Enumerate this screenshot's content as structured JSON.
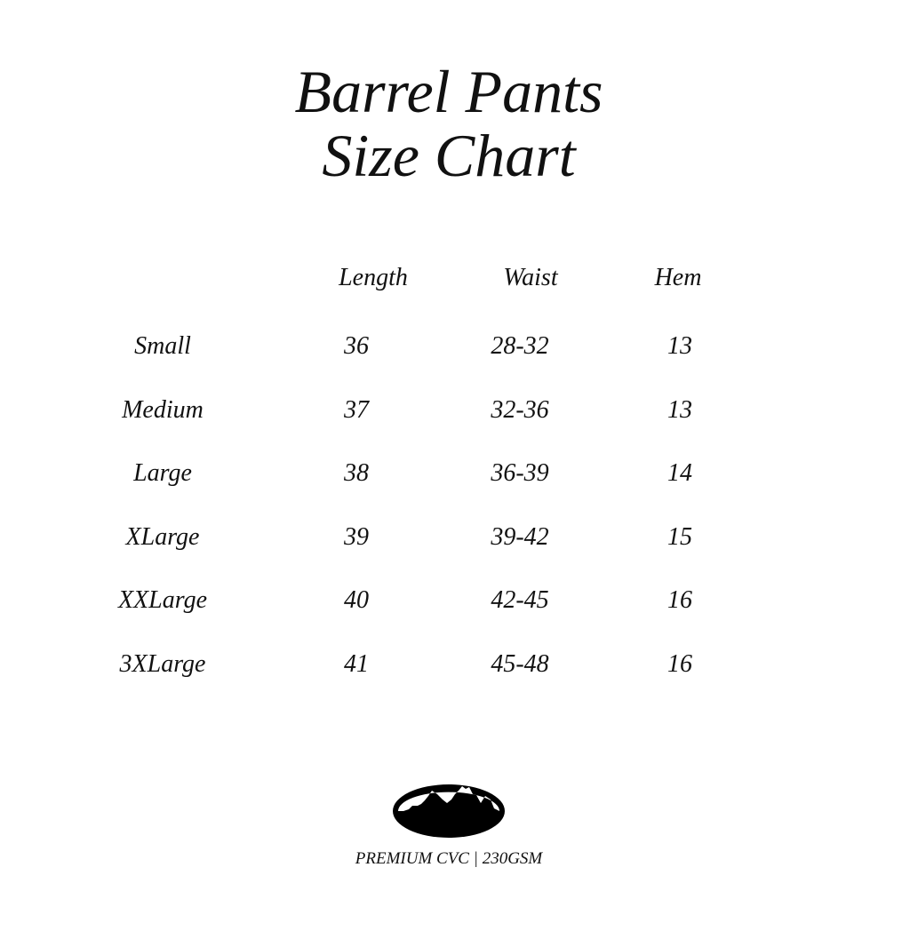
{
  "title": {
    "line1": "Barrel Pants",
    "line2": "Size Chart"
  },
  "table": {
    "headers": [
      "Length",
      "Waist",
      "Hem"
    ],
    "rows": [
      {
        "size": "Small",
        "length": "36",
        "waist": "28-32",
        "hem": "13"
      },
      {
        "size": "Medium",
        "length": "37",
        "waist": "32-36",
        "hem": "13"
      },
      {
        "size": "Large",
        "length": "38",
        "waist": "36-39",
        "hem": "14"
      },
      {
        "size": "XLarge",
        "length": "39",
        "waist": "39-42",
        "hem": "15"
      },
      {
        "size": "XXLarge",
        "length": "40",
        "waist": "42-45",
        "hem": "16"
      },
      {
        "size": "3XLarge",
        "length": "41",
        "waist": "45-48",
        "hem": "16"
      }
    ]
  },
  "logo": {
    "icon": "mountain-oval-logo"
  },
  "footer": {
    "text": "PREMIUM CVC | 230GSM"
  }
}
